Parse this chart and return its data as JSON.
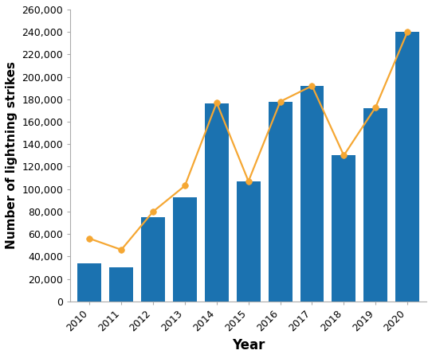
{
  "years": [
    2010,
    2011,
    2012,
    2013,
    2014,
    2015,
    2016,
    2017,
    2018,
    2019,
    2020
  ],
  "bar_values": [
    34000,
    30000,
    75000,
    93000,
    176000,
    107000,
    178000,
    192000,
    130000,
    172000,
    240000
  ],
  "line_values": [
    56000,
    46000,
    80000,
    103000,
    177000,
    107000,
    178000,
    192000,
    130000,
    173000,
    240000
  ],
  "bar_color": "#1b72b0",
  "line_color": "#f5a733",
  "marker_color": "#f5a733",
  "xlabel": "Year",
  "ylabel": "Number of lightning strikes",
  "ylim": [
    0,
    260000
  ],
  "ytick_step": 20000,
  "background_color": "#ffffff",
  "xlabel_fontsize": 12,
  "ylabel_fontsize": 11,
  "tick_fontsize": 9,
  "line_width": 1.6,
  "marker_size": 5.5
}
